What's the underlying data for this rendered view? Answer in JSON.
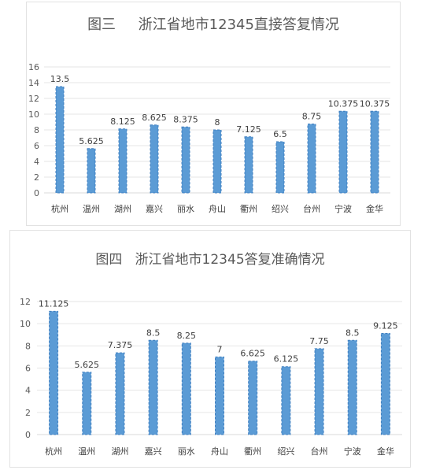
{
  "chart_data": [
    {
      "type": "bar",
      "title": "图三     浙江省地市12345直接答复情况",
      "categories": [
        "杭州",
        "温州",
        "湖州",
        "嘉兴",
        "丽水",
        "舟山",
        "衢州",
        "绍兴",
        "台州",
        "宁波",
        "金华"
      ],
      "values": [
        13.5,
        5.625,
        8.125,
        8.625,
        8.375,
        8,
        7.125,
        6.5,
        8.75,
        10.375,
        10.375
      ],
      "value_labels": [
        "13.5",
        "5.625",
        "8.125",
        "8.625",
        "8.375",
        "8",
        "7.125",
        "6.5",
        "8.75",
        "10.375",
        "10.375"
      ],
      "yticks": [
        "0",
        "2",
        "4",
        "6",
        "8",
        "10",
        "12",
        "14",
        "16"
      ],
      "ylim": [
        0,
        16
      ],
      "grid": true,
      "legend": "none",
      "bar_color": "#5b9bd5"
    },
    {
      "type": "bar",
      "title": "图四   浙江省地市12345答复准确情况",
      "categories": [
        "杭州",
        "温州",
        "湖州",
        "嘉兴",
        "丽水",
        "舟山",
        "衢州",
        "绍兴",
        "台州",
        "宁波",
        "金华"
      ],
      "values": [
        11.125,
        5.625,
        7.375,
        8.5,
        8.25,
        7,
        6.625,
        6.125,
        7.75,
        8.5,
        9.125
      ],
      "value_labels": [
        "11.125",
        "5.625",
        "7.375",
        "8.5",
        "8.25",
        "7",
        "6.625",
        "6.125",
        "7.75",
        "8.5",
        "9.125"
      ],
      "yticks": [
        "0",
        "2",
        "4",
        "6",
        "8",
        "10",
        "12"
      ],
      "ylim": [
        0,
        12
      ],
      "grid": true,
      "legend": "none",
      "bar_color": "#5b9bd5"
    }
  ]
}
